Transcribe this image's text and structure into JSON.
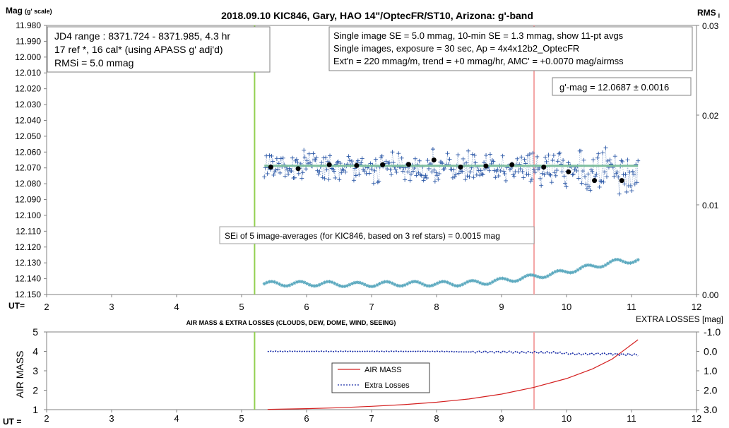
{
  "chart_data": [
    {
      "type": "scatter",
      "title": "2018.09.10  KIC846,  Gary, HAO 14\"/OptecFR/ST10,  Arizona:  g'-band",
      "ylabel": "Mag",
      "ylabel_sub": "(g' scale)",
      "y2label": "RMS",
      "y2label_sub": "i",
      "xlabel": "UT=",
      "xlim": [
        2,
        12
      ],
      "ylim": [
        12.15,
        11.98
      ],
      "y_inverted": true,
      "y2lim": [
        0.0,
        0.03
      ],
      "x_ticks": [
        "2",
        "3",
        "4",
        "5",
        "6",
        "7",
        "8",
        "9",
        "10",
        "11",
        "12"
      ],
      "y_ticks": [
        "11.980",
        "11.990",
        "12.000",
        "12.010",
        "12.020",
        "12.030",
        "12.040",
        "12.050",
        "12.060",
        "12.070",
        "12.080",
        "12.090",
        "12.100",
        "12.110",
        "12.120",
        "12.130",
        "12.140",
        "12.150"
      ],
      "y2_ticks": [
        "0.03",
        "0.02",
        "0.01",
        "0.00"
      ],
      "grid": false,
      "info_box_left": [
        "JD4 range : 8371.724 - 8371.985,  4.3  hr",
        "17 ref *, 16 cal* (using APASS g' adj'd)",
        "RMSi = 5.0 mmag"
      ],
      "info_box_right": [
        "Single image SE = 5.0 mmag, 10-min SE = 1.3 mmag, show  11-pt avgs",
        "Single images, exposure = 30 sec, Ap = 4x4x12b2_OptecFR",
        "Ext'n = 220 mmag/m, trend =  +0 mmag/hr, AMC' = +0.0070 mag/airmss"
      ],
      "result_box": "g'-mag = 12.0687 ± 0.0016",
      "sei_box": "SEi of 5 image-averages (for KIC846, based on 3 ref stars) = 0.0015  mag",
      "vertical_markers": [
        {
          "x": 5.2,
          "color": "#92d050"
        },
        {
          "x": 9.5,
          "color": "#f4a6a6"
        }
      ],
      "mean_mag": 12.0687,
      "avg_points": {
        "x": [
          5.45,
          5.87,
          6.35,
          6.77,
          7.17,
          7.57,
          7.96,
          8.37,
          8.76,
          9.16,
          9.65,
          10.03,
          10.43,
          10.85
        ],
        "y": [
          12.0695,
          12.0705,
          12.068,
          12.0685,
          12.068,
          12.0678,
          12.065,
          12.0695,
          12.0688,
          12.068,
          12.0695,
          12.0725,
          12.078,
          12.078
        ]
      },
      "rms_trend": {
        "x": [
          5.35,
          5.8,
          6.3,
          6.8,
          7.3,
          7.8,
          8.3,
          8.8,
          9.3,
          9.8,
          10.3,
          10.8,
          11.1
        ],
        "y": [
          0.0012,
          0.0012,
          0.0012,
          0.0011,
          0.0012,
          0.0012,
          0.0012,
          0.0014,
          0.0018,
          0.0023,
          0.003,
          0.0037,
          0.0038
        ]
      },
      "raw_series": {
        "x_start": 5.35,
        "x_end": 11.1,
        "center": 12.0695
      }
    },
    {
      "type": "line",
      "title": "AIR MASS & EXTRA LOSSES (CLOUDS, DEW, DOME, WIND, SEEING)",
      "ylabel": "AIR MASS",
      "y2label": "EXTRA LOSSES [mag]",
      "xlabel": "UT =",
      "xlim": [
        2,
        12
      ],
      "ylim": [
        1,
        5
      ],
      "y2lim": [
        3.0,
        -1.0
      ],
      "x_ticks": [
        "2",
        "3",
        "4",
        "5",
        "6",
        "7",
        "8",
        "9",
        "10",
        "11",
        "12"
      ],
      "y_ticks": [
        "5",
        "4",
        "3",
        "2",
        "1"
      ],
      "y2_ticks": [
        "-1.0",
        "0.0",
        "1.0",
        "2.0",
        "3.0"
      ],
      "grid": false,
      "legend_placement": "center",
      "vertical_markers": [
        {
          "x": 5.2,
          "color": "#92d050"
        },
        {
          "x": 9.5,
          "color": "#f4a6a6"
        }
      ],
      "series": [
        {
          "name": "AIR MASS",
          "color": "#d42020",
          "x": [
            5.4,
            6.0,
            6.5,
            7.0,
            7.5,
            8.0,
            8.5,
            9.0,
            9.5,
            10.0,
            10.4,
            10.7,
            10.9,
            11.1
          ],
          "y": [
            1.01,
            1.05,
            1.1,
            1.17,
            1.26,
            1.38,
            1.55,
            1.8,
            2.15,
            2.6,
            3.1,
            3.6,
            4.1,
            4.6
          ]
        },
        {
          "name": "Extra Losses",
          "color": "#1a2ea8",
          "x": [
            5.4,
            6.0,
            7.0,
            8.0,
            8.5,
            9.0,
            9.4,
            9.8,
            10.2,
            10.5,
            10.8,
            11.1
          ],
          "y": [
            0.0,
            0.0,
            0.0,
            0.0,
            0.03,
            0.03,
            0.05,
            0.06,
            0.15,
            0.12,
            0.15,
            0.18
          ]
        }
      ]
    }
  ]
}
